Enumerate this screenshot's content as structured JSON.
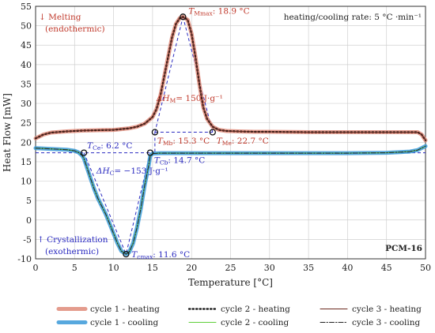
{
  "chart_data": {
    "type": "line",
    "xlabel": "Temperature [°C]",
    "ylabel": "Heat Flow [mW]",
    "xlim": [
      0,
      50
    ],
    "ylim": [
      -10,
      55
    ],
    "xticks": [
      0,
      5,
      10,
      15,
      20,
      25,
      30,
      35,
      40,
      45,
      50
    ],
    "yticks": [
      -10,
      -5,
      0,
      5,
      10,
      15,
      20,
      25,
      30,
      35,
      40,
      45,
      50,
      55
    ],
    "grid": true,
    "label_sample_name": "PCM-16",
    "label_rate": "heating/cooling rate: 5 °C ·min⁻¹",
    "label_melting_1": "Melting",
    "label_melting_2": "(endothermic)",
    "label_cryst_1": "Crystallization",
    "label_cryst_2": "(exothermic)",
    "annotations": {
      "t_mmax": {
        "sym": "T",
        "sub": "Mmax",
        "text": ": 18.9 °C"
      },
      "dh_m": {
        "sym": "ΔH",
        "sub": "M",
        "text": "= 150 J·g⁻¹"
      },
      "t_mb": {
        "sym": "T",
        "sub": "Mb",
        "text": ": 15.3 °C"
      },
      "t_me": {
        "sym": "T",
        "sub": "Me",
        "text": ": 22.7 °C"
      },
      "t_ce": {
        "sym": "T",
        "sub": "Ce",
        "text": ": 6.2 °C"
      },
      "dh_c": {
        "sym": "ΔH",
        "sub": "C",
        "text": "= −153 J·g⁻¹"
      },
      "t_cb": {
        "sym": "T",
        "sub": "Cb",
        "text": ": 14.7 °C"
      },
      "t_cmax": {
        "sym": "T",
        "sub": "cmax",
        "text": ": 11.6 °C"
      }
    },
    "series": [
      {
        "name": "cycle 1 - heating",
        "color": "#e08b7a",
        "style": "thick",
        "x": [
          0,
          1,
          2,
          4,
          6,
          8,
          10,
          12,
          13,
          14,
          15,
          15.5,
          16,
          16.5,
          17,
          17.5,
          18,
          18.5,
          18.9,
          19.5,
          20,
          20.5,
          21,
          21.5,
          22,
          22.7,
          23.5,
          24.5,
          26,
          28,
          30,
          35,
          40,
          45,
          49,
          49.5,
          50
        ],
        "y": [
          21,
          22,
          22.5,
          22.8,
          23,
          23.1,
          23.2,
          23.6,
          24,
          24.8,
          26.5,
          28.5,
          32,
          37,
          42,
          47,
          50.5,
          52,
          52.3,
          51.5,
          48,
          42,
          35,
          29,
          26,
          24,
          23.2,
          22.9,
          22.8,
          22.7,
          22.7,
          22.6,
          22.6,
          22.6,
          22.6,
          22,
          20.5
        ]
      },
      {
        "name": "cycle 2 - heating",
        "color": "#111111",
        "style": "dotted",
        "x": [
          0,
          1,
          2,
          4,
          6,
          8,
          10,
          12,
          13,
          14,
          15,
          15.5,
          16,
          16.5,
          17,
          17.5,
          18,
          18.5,
          18.9,
          19.5,
          20,
          20.5,
          21,
          21.5,
          22,
          22.7,
          23.5,
          24.5,
          26,
          28,
          30,
          35,
          40,
          45,
          49,
          49.5,
          50
        ],
        "y": [
          21,
          22,
          22.5,
          22.8,
          23,
          23.1,
          23.2,
          23.6,
          24,
          24.8,
          26.5,
          28.5,
          32,
          37,
          42,
          47,
          50.5,
          52,
          52.3,
          51.5,
          48,
          42,
          35,
          29,
          26,
          24,
          23.2,
          22.9,
          22.8,
          22.7,
          22.7,
          22.6,
          22.6,
          22.6,
          22.6,
          22,
          20.5
        ]
      },
      {
        "name": "cycle 3 - heating",
        "color": "#6b2a1f",
        "style": "solid",
        "x": [
          0,
          1,
          2,
          4,
          6,
          8,
          10,
          12,
          13,
          14,
          15,
          15.5,
          16,
          16.5,
          17,
          17.5,
          18,
          18.5,
          18.9,
          19.5,
          20,
          20.5,
          21,
          21.5,
          22,
          22.7,
          23.5,
          24.5,
          26,
          28,
          30,
          35,
          40,
          45,
          49,
          49.5,
          50
        ],
        "y": [
          21,
          22,
          22.5,
          22.8,
          23,
          23.1,
          23.2,
          23.6,
          24,
          24.8,
          26.5,
          28.5,
          32,
          37,
          42,
          47,
          50.5,
          52,
          52.3,
          51.5,
          48,
          42,
          35,
          29,
          26,
          24,
          23.2,
          22.9,
          22.8,
          22.7,
          22.7,
          22.6,
          22.6,
          22.6,
          22.6,
          22,
          20.5
        ]
      },
      {
        "name": "cycle 1 - cooling",
        "color": "#3a9ad9",
        "style": "thick",
        "x": [
          0,
          1,
          2,
          3,
          4,
          5,
          5.5,
          6,
          6.2,
          6.5,
          7,
          7.5,
          8,
          8.5,
          9,
          9.5,
          10,
          10.5,
          11,
          11.6,
          12,
          12.5,
          13,
          13.5,
          14,
          14.5,
          14.7,
          15,
          16,
          20,
          25,
          30,
          35,
          40,
          45,
          48,
          49,
          50
        ],
        "y": [
          18.5,
          18.4,
          18.3,
          18.2,
          18.1,
          17.8,
          17.4,
          16.5,
          15.8,
          14,
          11,
          8,
          5.5,
          3.5,
          1.5,
          -1,
          -3.5,
          -6,
          -8,
          -8.8,
          -8.3,
          -6,
          -2,
          3,
          9,
          14,
          16.5,
          17.1,
          17.2,
          17.2,
          17.2,
          17.2,
          17.2,
          17.2,
          17.3,
          17.6,
          18,
          19
        ]
      },
      {
        "name": "cycle 2 - cooling",
        "color": "#5ecf3a",
        "style": "solid",
        "x": [
          0,
          1,
          2,
          3,
          4,
          5,
          5.5,
          6,
          6.2,
          6.5,
          7,
          7.5,
          8,
          8.5,
          9,
          9.5,
          10,
          10.5,
          11,
          11.6,
          12,
          12.5,
          13,
          13.5,
          14,
          14.5,
          14.7,
          15,
          16,
          20,
          25,
          30,
          35,
          40,
          45,
          48,
          49,
          50
        ],
        "y": [
          18.5,
          18.4,
          18.3,
          18.2,
          18.1,
          17.8,
          17.4,
          16.5,
          15.8,
          14,
          11,
          8,
          5.5,
          3.5,
          1.5,
          -1,
          -3.5,
          -6,
          -8,
          -8.8,
          -8.3,
          -6,
          -2,
          3,
          9,
          14,
          16.5,
          17.1,
          17.2,
          17.2,
          17.2,
          17.2,
          17.2,
          17.2,
          17.3,
          17.6,
          18,
          19
        ]
      },
      {
        "name": "cycle 3 - cooling",
        "color": "#222222",
        "style": "dashdot",
        "x": [
          0,
          1,
          2,
          3,
          4,
          5,
          5.5,
          6,
          6.2,
          6.5,
          7,
          7.5,
          8,
          8.5,
          9,
          9.5,
          10,
          10.5,
          11,
          11.6,
          12,
          12.5,
          13,
          13.5,
          14,
          14.5,
          14.7,
          15,
          16,
          20,
          25,
          30,
          35,
          40,
          45,
          48,
          49,
          50
        ],
        "y": [
          18.5,
          18.4,
          18.3,
          18.2,
          18.1,
          17.8,
          17.4,
          16.5,
          15.8,
          14,
          11,
          8,
          5.5,
          3.5,
          1.5,
          -1,
          -3.5,
          -6,
          -8,
          -8.8,
          -8.3,
          -6,
          -2,
          3,
          9,
          14,
          16.5,
          17.1,
          17.2,
          17.2,
          17.2,
          17.2,
          17.2,
          17.2,
          17.3,
          17.6,
          18,
          19
        ]
      }
    ],
    "markers": [
      {
        "x": 18.9,
        "y": 52.3
      },
      {
        "x": 15.3,
        "y": 22.6
      },
      {
        "x": 22.7,
        "y": 22.6
      },
      {
        "x": 6.2,
        "y": 17.3
      },
      {
        "x": 14.7,
        "y": 17.3
      },
      {
        "x": 11.6,
        "y": -8.8
      }
    ],
    "colors": {
      "melting": "#c0392b",
      "crystallization": "#2a2ac0",
      "grid": "#d0d0d0"
    }
  }
}
